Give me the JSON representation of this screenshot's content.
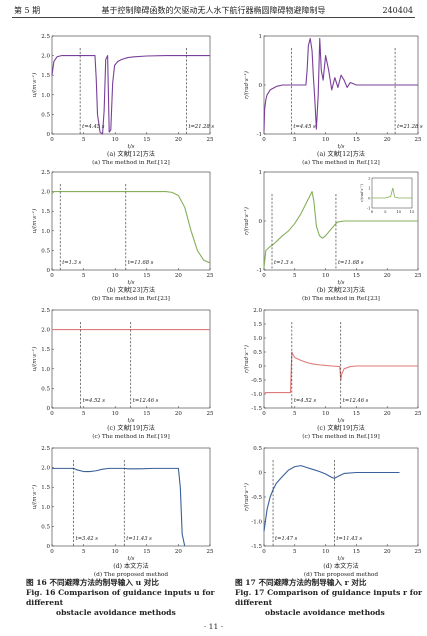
{
  "header": {
    "issue": "第 5 期",
    "title": "基于控制障碍函数的欠驱动无人水下航行器椭圆障碍物避障制导",
    "code": "240404"
  },
  "panels": [
    {
      "sub_cn": "(a) 文献[12]方法",
      "sub_en": "(a) The method in Ref.[12]"
    },
    {
      "sub_cn": "(b) 文献[23]方法",
      "sub_en": "(b) The method in Ref.[23]"
    },
    {
      "sub_cn": "(c) 文献[19]方法",
      "sub_en": "(c) The method in Ref.[19]"
    },
    {
      "sub_cn": "(d) 本文方法",
      "sub_en": "(d) The proposed method"
    }
  ],
  "x_label": "t/s",
  "u_label": "u/(m·s⁻¹)",
  "r_label": "r/(rad·s⁻¹)",
  "fig16": {
    "cn": "图 16   不同避障方法的制导输入 u 对比",
    "en1": "Fig. 16   Comparison of guidance inputs u for different",
    "en2": "obstacle avoidance methods"
  },
  "fig17": {
    "cn": "图 17   不同避障方法的制导输入 r 对比",
    "en1": "Fig. 17   Comparison of guidance inputs r for different",
    "en2": "obstacle avoidance methods"
  },
  "page_number": "· 11 ·",
  "chart_data": [
    {
      "type": "line",
      "id": "16a",
      "ylabel": "u/(m·s⁻¹)",
      "xlabel": "t/s",
      "xlim": [
        0,
        25
      ],
      "ylim": [
        0,
        2.5
      ],
      "xticks": [
        0,
        5,
        10,
        15,
        20,
        25
      ],
      "yticks": [
        0,
        0.5,
        1.0,
        1.5,
        2.0,
        2.5
      ],
      "color": "#7a3f9a",
      "x": [
        0,
        0.3,
        0.8,
        1.5,
        2.5,
        4.45,
        5.5,
        6.8,
        7.0,
        7.2,
        7.6,
        8.0,
        8.25,
        8.5,
        8.8,
        9.05,
        9.3,
        9.6,
        9.9,
        10.4,
        11,
        12,
        13,
        15,
        18,
        21.28,
        25
      ],
      "y": [
        1.5,
        1.85,
        1.97,
        2.0,
        2.0,
        2.0,
        2.0,
        2.0,
        1.4,
        0.5,
        0.05,
        0.0,
        0.6,
        1.9,
        2.0,
        0.05,
        0.1,
        1.3,
        1.75,
        1.85,
        1.9,
        1.95,
        1.97,
        1.99,
        2.0,
        2.0,
        2.0
      ],
      "annotations": [
        {
          "x": 4.45,
          "label": "t=4.45 s"
        },
        {
          "x": 21.28,
          "label": "t=21.28 s"
        }
      ]
    },
    {
      "type": "line",
      "id": "16b",
      "ylabel": "u/(m·s⁻¹)",
      "xlabel": "t/s",
      "xlim": [
        0,
        25
      ],
      "ylim": [
        0,
        2.5
      ],
      "xticks": [
        0,
        5,
        10,
        15,
        20,
        25
      ],
      "yticks": [
        0,
        0.5,
        1.0,
        1.5,
        2.0,
        2.5
      ],
      "color": "#86b05a",
      "x": [
        0,
        0.3,
        1.3,
        5,
        10,
        11.68,
        15,
        18,
        19,
        20,
        21,
        22,
        23,
        24,
        25
      ],
      "y": [
        1.95,
        2.0,
        2.0,
        2.0,
        2.0,
        2.0,
        2.0,
        2.0,
        1.98,
        1.9,
        1.6,
        1.0,
        0.5,
        0.25,
        0.18
      ],
      "annotations": [
        {
          "x": 1.3,
          "label": "t=1.3 s"
        },
        {
          "x": 11.68,
          "label": "t=11.68 s"
        }
      ]
    },
    {
      "type": "line",
      "id": "16c",
      "ylabel": "u/(m·s⁻¹)",
      "xlabel": "t/s",
      "xlim": [
        0,
        25
      ],
      "ylim": [
        0,
        2.5
      ],
      "xticks": [
        0,
        5,
        10,
        15,
        20,
        25
      ],
      "yticks": [
        0,
        0.5,
        1.0,
        1.5,
        2.0,
        2.5
      ],
      "color": "#e07a7a",
      "x": [
        0,
        4.52,
        12.46,
        25
      ],
      "y": [
        2.0,
        2.0,
        2.0,
        2.0
      ],
      "annotations": [
        {
          "x": 4.52,
          "label": "t=4.52 s"
        },
        {
          "x": 12.46,
          "label": "t=12.46 s"
        }
      ]
    },
    {
      "type": "line",
      "id": "16d",
      "ylabel": "u/(m·s⁻¹)",
      "xlabel": "t/s",
      "xlim": [
        0,
        25
      ],
      "ylim": [
        0,
        2.5
      ],
      "xticks": [
        0,
        5,
        10,
        15,
        20,
        25
      ],
      "yticks": [
        0,
        0.5,
        1.0,
        1.5,
        2.0,
        2.5
      ],
      "color": "#3a5f9a",
      "x": [
        0,
        1,
        2,
        3.42,
        4,
        5,
        6,
        7,
        8,
        9,
        10,
        11.43,
        12,
        14,
        16,
        18,
        20,
        20.3,
        20.6,
        21
      ],
      "y": [
        1.98,
        1.98,
        1.98,
        1.98,
        1.94,
        1.9,
        1.9,
        1.92,
        1.96,
        1.98,
        1.98,
        1.98,
        1.97,
        1.97,
        1.98,
        1.98,
        1.98,
        1.5,
        0.3,
        0.0
      ],
      "annotations": [
        {
          "x": 3.42,
          "label": "t=3.42 s"
        },
        {
          "x": 11.43,
          "label": "t=11.43 s"
        }
      ]
    },
    {
      "type": "line",
      "id": "17a",
      "ylabel": "r/(rad·s⁻¹)",
      "xlabel": "t/s",
      "xlim": [
        0,
        25
      ],
      "ylim": [
        -1,
        1
      ],
      "xticks": [
        0,
        5,
        10,
        15,
        20,
        25
      ],
      "yticks": [
        -1,
        0,
        1
      ],
      "color": "#7a3f9a",
      "x": [
        0,
        0.1,
        0.3,
        0.5,
        1,
        2,
        3,
        4.45,
        5,
        6,
        6.8,
        7.0,
        7.2,
        7.5,
        7.8,
        8.0,
        8.25,
        8.5,
        8.8,
        9.05,
        9.3,
        9.6,
        10,
        10.5,
        11,
        11.5,
        12,
        12.5,
        13,
        13.5,
        14,
        15,
        17,
        21.28,
        25
      ],
      "y": [
        -0.95,
        -0.5,
        -0.3,
        -0.2,
        -0.1,
        -0.03,
        0,
        0,
        0,
        0,
        0,
        0.3,
        0.8,
        0.95,
        0.7,
        0.2,
        -0.3,
        -0.9,
        -0.2,
        0.95,
        0.3,
        0.1,
        0.6,
        0.3,
        -0.1,
        0.15,
        -0.05,
        0.2,
        0.1,
        -0.05,
        0.05,
        0,
        0,
        0,
        0
      ],
      "annotations": [
        {
          "x": 4.45,
          "label": "t=4.45 s"
        },
        {
          "x": 21.28,
          "label": "t=21.28 s"
        }
      ]
    },
    {
      "type": "line",
      "id": "17b",
      "ylabel": "r/(rad·s⁻¹)",
      "xlabel": "t/s",
      "xlim": [
        0,
        25
      ],
      "ylim": [
        -1,
        1
      ],
      "xticks": [
        0,
        5,
        10,
        15,
        20,
        25
      ],
      "yticks": [
        -1,
        0,
        1
      ],
      "color": "#86b05a",
      "x": [
        0,
        0.3,
        1,
        1.3,
        2,
        3,
        4,
        5,
        6,
        7,
        7.8,
        8.1,
        8.5,
        9,
        9.5,
        10,
        11,
        11.68,
        12,
        13,
        15,
        25
      ],
      "y": [
        -0.95,
        -0.6,
        -0.52,
        -0.5,
        -0.42,
        -0.3,
        -0.2,
        -0.05,
        0.15,
        0.4,
        0.6,
        0.4,
        -0.1,
        -0.3,
        -0.35,
        -0.3,
        -0.15,
        -0.05,
        -0.02,
        0,
        0,
        0
      ],
      "annotations": [
        {
          "x": 1.3,
          "label": "t=1.3 s"
        },
        {
          "x": 11.68,
          "label": "t=11.68 s"
        }
      ],
      "inset": {
        "xlim": [
          0,
          15
        ],
        "ylim": [
          -1,
          2
        ],
        "xticks": [
          0,
          5,
          10,
          15
        ],
        "yticks": [
          -1,
          0,
          1,
          2
        ],
        "ylabel": "r/(rad·s⁻¹)",
        "x": [
          0,
          5,
          7,
          7.8,
          8.5,
          10,
          15
        ],
        "y": [
          0,
          0,
          0.15,
          1.0,
          0.1,
          0,
          0
        ]
      }
    },
    {
      "type": "line",
      "id": "17c",
      "ylabel": "r/(rad·s⁻¹)",
      "xlabel": "t/s",
      "xlim": [
        0,
        25
      ],
      "ylim": [
        -1.5,
        2.0
      ],
      "xticks": [
        0,
        5,
        10,
        15,
        20,
        25
      ],
      "yticks": [
        -1.5,
        -1.0,
        -0.5,
        0,
        0.5,
        1.0,
        1.5,
        2.0
      ],
      "color": "#e07a7a",
      "x": [
        0,
        0.3,
        1,
        2,
        3,
        4.3,
        4.52,
        4.6,
        5,
        6,
        7,
        8,
        9,
        10,
        11,
        12.3,
        12.46,
        12.6,
        13,
        14,
        15,
        25
      ],
      "y": [
        -1.0,
        -0.95,
        -0.95,
        -0.95,
        -0.95,
        -0.95,
        0.5,
        0.45,
        0.3,
        0.2,
        0.12,
        0.07,
        0.04,
        0.02,
        0.0,
        -0.02,
        -0.5,
        -0.3,
        -0.1,
        -0.02,
        0,
        0
      ],
      "annotations": [
        {
          "x": 4.52,
          "label": "t=4.52 s"
        },
        {
          "x": 12.46,
          "label": "t=12.46 s"
        }
      ]
    },
    {
      "type": "line",
      "id": "17d",
      "ylabel": "r/(rad·s⁻¹)",
      "xlabel": "t/s",
      "xlim": [
        0,
        25
      ],
      "ylim": [
        -1.5,
        0.5
      ],
      "xticks": [
        0,
        5,
        10,
        15,
        20,
        25
      ],
      "yticks": [
        -1.5,
        -1.0,
        -0.5,
        0,
        0.5
      ],
      "color": "#3a5f9a",
      "x": [
        0,
        0.5,
        1,
        1.47,
        2,
        3,
        4,
        5,
        6,
        7,
        8,
        9,
        10,
        11,
        11.43,
        12,
        13,
        15,
        22
      ],
      "y": [
        -1.2,
        -0.75,
        -0.5,
        -0.35,
        -0.22,
        -0.08,
        0.05,
        0.12,
        0.14,
        0.1,
        0.06,
        0.02,
        -0.03,
        -0.1,
        -0.12,
        -0.08,
        -0.02,
        0,
        0
      ],
      "annotations": [
        {
          "x": 1.47,
          "label": "t=1.47 s"
        },
        {
          "x": 11.43,
          "label": "t=11.43 s"
        }
      ]
    }
  ]
}
